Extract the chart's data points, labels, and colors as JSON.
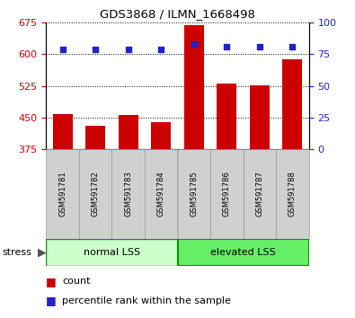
{
  "title": "GDS3868 / ILMN_1668498",
  "categories": [
    "GSM591781",
    "GSM591782",
    "GSM591783",
    "GSM591784",
    "GSM591785",
    "GSM591786",
    "GSM591787",
    "GSM591788"
  ],
  "counts": [
    458,
    430,
    457,
    440,
    668,
    530,
    527,
    588
  ],
  "percentile_ranks": [
    79,
    79,
    79,
    79,
    83,
    81,
    81,
    81
  ],
  "ylim_left": [
    375,
    675
  ],
  "ylim_right": [
    0,
    100
  ],
  "yticks_left": [
    375,
    450,
    525,
    600,
    675
  ],
  "yticks_right": [
    0,
    25,
    50,
    75,
    100
  ],
  "bar_color": "#cc0000",
  "dot_color": "#2222cc",
  "group1_label": "normal LSS",
  "group2_label": "elevated LSS",
  "group1_color": "#ccffcc",
  "group2_color": "#66ee66",
  "group1_border": "#009900",
  "group2_border": "#009900",
  "stress_label": "stress",
  "legend_count_label": "count",
  "legend_pct_label": "percentile rank within the sample",
  "grid_color": "black",
  "background_color": "white",
  "bar_width": 0.6,
  "label_box_color": "#d0d0d0",
  "label_box_edge": "#999999"
}
